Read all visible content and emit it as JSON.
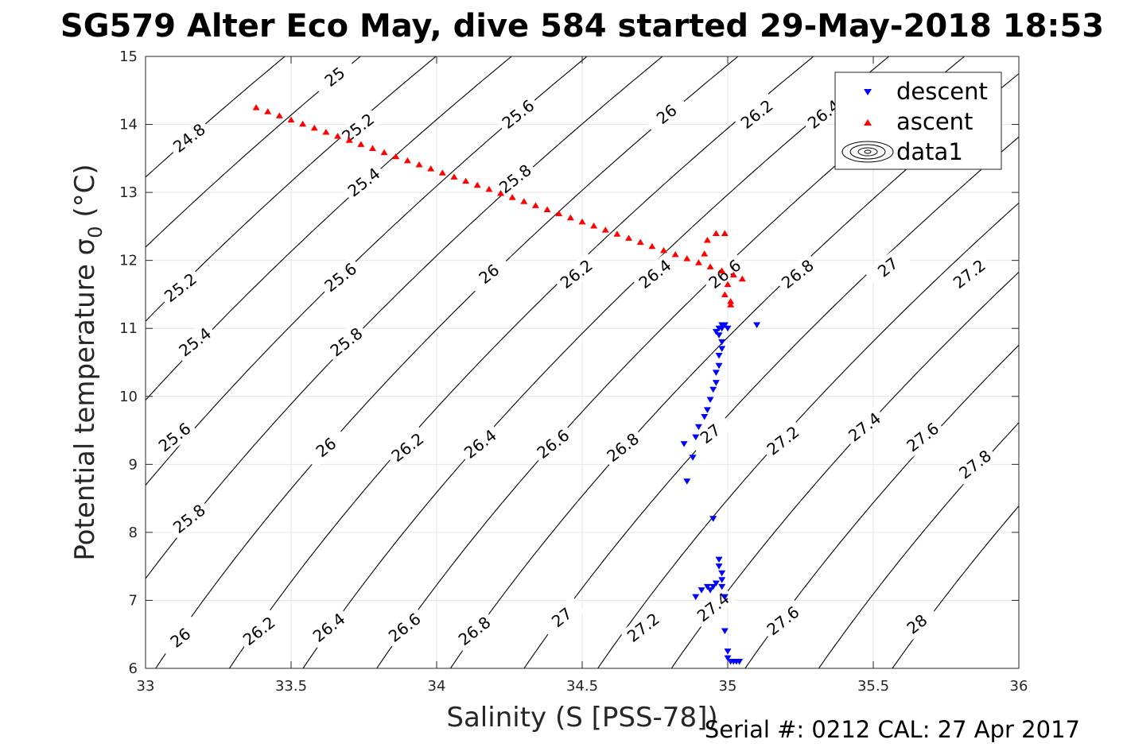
{
  "chart_data": {
    "type": "scatter",
    "title": "SG579 Alter Eco May, dive 584 started 29-May-2018 18:53",
    "xlabel": "Salinity (S [PSS-78])",
    "ylabel": "Potential temperature",
    "ylabel_symbol": "σ",
    "ylabel_sub": "0",
    "ylabel_unit": "(°C)",
    "xlim": [
      33,
      36
    ],
    "ylim": [
      6,
      15
    ],
    "xticks": [
      "33",
      "33.5",
      "34",
      "34.5",
      "35",
      "35.5",
      "36"
    ],
    "yticks": [
      "6",
      "7",
      "8",
      "9",
      "10",
      "11",
      "12",
      "13",
      "14",
      "15"
    ],
    "grid": true,
    "legend": {
      "placement": "top-right",
      "entries": [
        {
          "name": "descent",
          "marker": "triangle-down",
          "color": "#0000ff"
        },
        {
          "name": "ascent",
          "marker": "triangle-up",
          "color": "#ff0000"
        },
        {
          "name": "data1",
          "marker": "contour",
          "color": "#000000"
        }
      ]
    },
    "contour_levels": [
      24.8,
      25,
      25.2,
      25.4,
      25.6,
      25.8,
      26,
      26.2,
      26.4,
      26.6,
      26.8,
      27,
      27.2,
      27.4,
      27.6,
      27.8,
      28
    ],
    "contour_labels": [
      {
        "text": "25",
        "s": 33.65,
        "t": 14.7
      },
      {
        "text": "24.8",
        "s": 33.15,
        "t": 13.8
      },
      {
        "text": "25.2",
        "s": 33.73,
        "t": 13.95
      },
      {
        "text": "25.6",
        "s": 34.28,
        "t": 14.15
      },
      {
        "text": "26",
        "s": 34.79,
        "t": 14.15
      },
      {
        "text": "26.2",
        "s": 35.1,
        "t": 14.15
      },
      {
        "text": "26.4",
        "s": 35.33,
        "t": 14.15
      },
      {
        "text": "25.4",
        "s": 33.75,
        "t": 13.15
      },
      {
        "text": "25.8",
        "s": 34.27,
        "t": 13.2
      },
      {
        "text": "25.2",
        "s": 33.12,
        "t": 11.6
      },
      {
        "text": "25.6",
        "s": 33.67,
        "t": 11.75
      },
      {
        "text": "26",
        "s": 34.18,
        "t": 11.8
      },
      {
        "text": "26.2",
        "s": 34.48,
        "t": 11.8
      },
      {
        "text": "26.4",
        "s": 34.75,
        "t": 11.8
      },
      {
        "text": "26.6",
        "s": 34.99,
        "t": 11.8
      },
      {
        "text": "26.8",
        "s": 35.24,
        "t": 11.8
      },
      {
        "text": "27",
        "s": 35.55,
        "t": 11.9
      },
      {
        "text": "27.2",
        "s": 35.83,
        "t": 11.8
      },
      {
        "text": "25.4",
        "s": 33.17,
        "t": 10.8
      },
      {
        "text": "25.8",
        "s": 33.69,
        "t": 10.8
      },
      {
        "text": "25.6",
        "s": 33.1,
        "t": 9.4
      },
      {
        "text": "26",
        "s": 33.62,
        "t": 9.25
      },
      {
        "text": "26.2",
        "s": 33.9,
        "t": 9.25
      },
      {
        "text": "26.4",
        "s": 34.15,
        "t": 9.3
      },
      {
        "text": "26.6",
        "s": 34.4,
        "t": 9.3
      },
      {
        "text": "26.8",
        "s": 34.64,
        "t": 9.25
      },
      {
        "text": "27",
        "s": 34.94,
        "t": 9.45
      },
      {
        "text": "27.2",
        "s": 35.19,
        "t": 9.35
      },
      {
        "text": "27.4",
        "s": 35.47,
        "t": 9.55
      },
      {
        "text": "27.6",
        "s": 35.67,
        "t": 9.4
      },
      {
        "text": "27.8",
        "s": 35.85,
        "t": 9.0
      },
      {
        "text": "25.8",
        "s": 33.15,
        "t": 8.2
      },
      {
        "text": "26",
        "s": 33.12,
        "t": 6.45
      },
      {
        "text": "26.2",
        "s": 33.39,
        "t": 6.55
      },
      {
        "text": "26.4",
        "s": 33.63,
        "t": 6.6
      },
      {
        "text": "26.6",
        "s": 33.89,
        "t": 6.6
      },
      {
        "text": "26.8",
        "s": 34.13,
        "t": 6.55
      },
      {
        "text": "27",
        "s": 34.43,
        "t": 6.75
      },
      {
        "text": "27.2",
        "s": 34.71,
        "t": 6.6
      },
      {
        "text": "27.4",
        "s": 34.95,
        "t": 6.9
      },
      {
        "text": "27.6",
        "s": 35.19,
        "t": 6.7
      },
      {
        "text": "28",
        "s": 35.65,
        "t": 6.65
      }
    ],
    "series": [
      {
        "name": "descent",
        "color": "#0000ff",
        "marker": "triangle-down",
        "x": [
          35.03,
          35.02,
          35.01,
          35.0,
          35.04,
          35.0,
          34.99,
          34.99,
          34.98,
          34.98,
          34.98,
          34.97,
          34.97,
          34.96,
          34.95,
          34.94,
          34.93,
          34.91,
          34.89,
          34.95,
          34.86,
          34.88,
          34.85,
          34.89,
          34.9,
          34.92,
          34.93,
          34.94,
          34.95,
          34.96,
          34.96,
          34.97,
          34.97,
          34.98,
          34.98,
          34.97,
          34.96,
          34.97,
          34.98,
          34.99,
          35.0,
          35.1,
          34.98
        ],
        "y": [
          6.1,
          6.1,
          6.1,
          6.15,
          6.1,
          6.25,
          6.55,
          7.05,
          7.2,
          7.3,
          7.4,
          7.5,
          7.6,
          7.25,
          7.2,
          7.15,
          7.2,
          7.15,
          7.05,
          8.2,
          8.75,
          9.1,
          9.3,
          9.4,
          9.55,
          9.7,
          9.8,
          9.95,
          10.1,
          10.2,
          10.35,
          10.45,
          10.6,
          10.7,
          10.8,
          10.9,
          10.95,
          11.0,
          11.05,
          11.05,
          11.0,
          11.05,
          11.0
        ]
      },
      {
        "name": "ascent",
        "color": "#ff0000",
        "marker": "triangle-up",
        "x": [
          33.38,
          33.42,
          33.46,
          33.5,
          33.54,
          33.58,
          33.62,
          33.66,
          33.7,
          33.74,
          33.78,
          33.82,
          33.86,
          33.9,
          33.94,
          33.98,
          34.02,
          34.06,
          34.1,
          34.14,
          34.18,
          34.22,
          34.26,
          34.3,
          34.34,
          34.38,
          34.42,
          34.46,
          34.5,
          34.54,
          34.58,
          34.62,
          34.66,
          34.7,
          34.74,
          34.78,
          34.82,
          34.86,
          34.9,
          34.94,
          34.98,
          35.02,
          35.05,
          34.99,
          34.96,
          34.93,
          34.92,
          35.0,
          35.01,
          34.99,
          35.01
        ],
        "y": [
          14.25,
          14.19,
          14.13,
          14.07,
          14.01,
          13.95,
          13.89,
          13.83,
          13.77,
          13.71,
          13.65,
          13.59,
          13.53,
          13.47,
          13.41,
          13.35,
          13.29,
          13.23,
          13.17,
          13.11,
          13.05,
          12.99,
          12.93,
          12.87,
          12.81,
          12.75,
          12.69,
          12.63,
          12.57,
          12.51,
          12.45,
          12.39,
          12.33,
          12.27,
          12.21,
          12.15,
          12.09,
          12.03,
          11.97,
          11.91,
          11.85,
          11.79,
          11.73,
          12.4,
          12.4,
          12.3,
          12.1,
          11.65,
          11.35,
          11.5,
          11.4
        ]
      }
    ]
  },
  "footer": "Serial #: 0212  CAL: 27 Apr 2017"
}
